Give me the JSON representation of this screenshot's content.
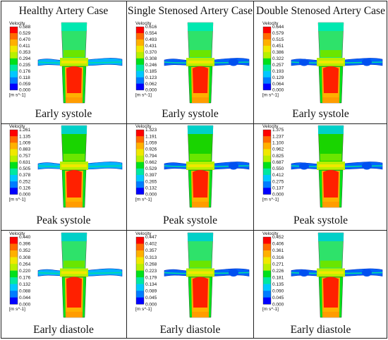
{
  "columns": [
    "Healthy Artery Case",
    "Single Stenosed Artery Case",
    "Double Stenosed Artery Case"
  ],
  "rows": [
    {
      "caption": "Early systole",
      "panels": [
        {
          "ticks": [
            "0.588",
            "0.529",
            "0.470",
            "0.411",
            "0.353",
            "0.294",
            "0.235",
            "0.176",
            "0.118",
            "0.059",
            "0.000"
          ],
          "stenosis": "none"
        },
        {
          "ticks": [
            "0.616",
            "0.554",
            "0.493",
            "0.431",
            "0.370",
            "0.308",
            "0.246",
            "0.185",
            "0.123",
            "0.062",
            "0.000"
          ],
          "stenosis": "single"
        },
        {
          "ticks": [
            "0.644",
            "0.579",
            "0.515",
            "0.451",
            "0.386",
            "0.322",
            "0.257",
            "0.193",
            "0.129",
            "0.064",
            "0.000"
          ],
          "stenosis": "double"
        }
      ]
    },
    {
      "caption": "Peak systole",
      "panels": [
        {
          "ticks": [
            "1.261",
            "1.135",
            "1.009",
            "0.883",
            "0.757",
            "0.631",
            "0.505",
            "0.378",
            "0.252",
            "0.126",
            "0.000"
          ],
          "stenosis": "none"
        },
        {
          "ticks": [
            "1.323",
            "1.191",
            "1.059",
            "0.926",
            "0.794",
            "0.662",
            "0.529",
            "0.397",
            "0.265",
            "0.132",
            "0.000"
          ],
          "stenosis": "single"
        },
        {
          "ticks": [
            "1.375",
            "1.237",
            "1.100",
            "0.962",
            "0.825",
            "0.687",
            "0.550",
            "0.412",
            "0.275",
            "0.137",
            "0.000"
          ],
          "stenosis": "double"
        }
      ]
    },
    {
      "caption": "Early diastole",
      "panels": [
        {
          "ticks": [
            "0.440",
            "0.396",
            "0.352",
            "0.308",
            "0.264",
            "0.220",
            "0.176",
            "0.132",
            "0.088",
            "0.044",
            "0.000"
          ],
          "stenosis": "none"
        },
        {
          "ticks": [
            "0.447",
            "0.402",
            "0.357",
            "0.313",
            "0.268",
            "0.223",
            "0.179",
            "0.134",
            "0.089",
            "0.045",
            "0.000"
          ],
          "stenosis": "single"
        },
        {
          "ticks": [
            "0.452",
            "0.406",
            "0.361",
            "0.316",
            "0.271",
            "0.226",
            "0.181",
            "0.135",
            "0.090",
            "0.045",
            "0.000"
          ],
          "stenosis": "double"
        }
      ]
    }
  ],
  "legend": {
    "title": "Velocity",
    "unit": "[m s^-1]"
  },
  "colormap": [
    "#ff0000",
    "#ff6a00",
    "#ffb000",
    "#f0e800",
    "#b8f000",
    "#5ce600",
    "#00e01a",
    "#00e8a0",
    "#00c8ff",
    "#007cff",
    "#0000ff"
  ]
}
